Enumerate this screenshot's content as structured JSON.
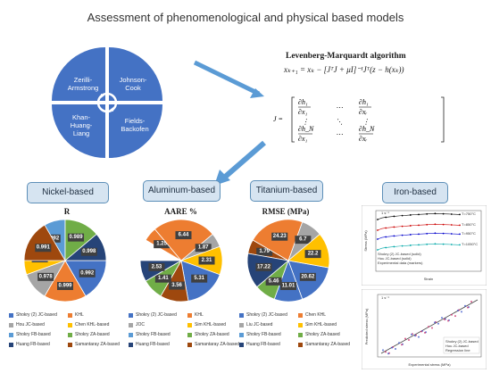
{
  "title": "Assessment of phenomenological and physical based models",
  "models": [
    "Zerilli-Armstrong",
    "Johnson-Cook",
    "Khan-Huang-Liang",
    "Fields-Backofen"
  ],
  "algorithm": {
    "title": "Levenberg-Marquardt algorithm",
    "update": "xₖ₊₁ = xₖ − [JᵀJ + μI]⁻¹Jᵀ(z − h(xₖ))"
  },
  "sections": [
    {
      "label": "Nickel-based",
      "metric": "R"
    },
    {
      "label": "Aluminum-based",
      "metric": "AARE %"
    },
    {
      "label": "Titanium-based",
      "metric": "RMSE (MPa)"
    },
    {
      "label": "Iron-based"
    }
  ],
  "colors": {
    "c1": "#4472c4",
    "c2": "#ed7d31",
    "c3": "#a5a5a5",
    "c4": "#ffc000",
    "c5": "#5b9bd5",
    "c6": "#70ad47",
    "c7": "#264478",
    "c8": "#9e480e"
  },
  "pies": [
    {
      "labels": [
        "0.992",
        "0.999",
        "0.978",
        "0.987",
        "0.992",
        "0.989",
        "0.998",
        "0.991"
      ]
    },
    {
      "labels": [
        "5.31",
        "1.25",
        "6.44",
        "1.87",
        "2.31",
        "3.56",
        "1.41",
        "2.53"
      ]
    },
    {
      "labels": [
        "20.62",
        "1.79",
        "24.23",
        "6.7",
        "22.2",
        "11.01",
        "5.46",
        "17.22"
      ]
    }
  ],
  "legends": {
    "nickel": [
      "Shokry (2) JC-based",
      "KHL",
      "Hou JC-based",
      "Chen KHL-based",
      "Shokry FB-based",
      "Shokry ZA-based",
      "Huang FB-based",
      "Samantaray ZA-based"
    ],
    "aluminum": [
      "Shokry (2) JC-based",
      "KHL",
      "JOC",
      "Sim KHL-based",
      "Shokry FB-based",
      "Shokry ZA-based",
      "Huang FB-based",
      "Samantaray ZA-based"
    ],
    "titanium": [
      "Shokry (2) JC-based",
      "Chen KHL",
      "Liu JC-based",
      "Sim KHL-based",
      "Shokry FB-based",
      "Shokry ZA-based",
      "Huang FB-based",
      "Samantaray ZA-based"
    ]
  },
  "iron": {
    "top": {
      "multiplier": "1 s⁻¹",
      "ylabel": "Stress (MPa)",
      "xlabel": "Strain",
      "curves": [
        "T=750°C",
        "T=850°C",
        "T=950°C",
        "T=1050°C"
      ],
      "legend": [
        "Shokry (2) JC-based (solid)",
        "Hou JC-based (solid)",
        "Experimental data (markers)"
      ]
    },
    "bottom": {
      "multiplier": "1 s⁻¹",
      "ylabel": "Predicted stress (MPa)",
      "xlabel": "Experimental stress (MPa)",
      "legend": [
        "Shokry (2) JC-based",
        "Hou JC-based",
        "Regression line"
      ]
    }
  }
}
